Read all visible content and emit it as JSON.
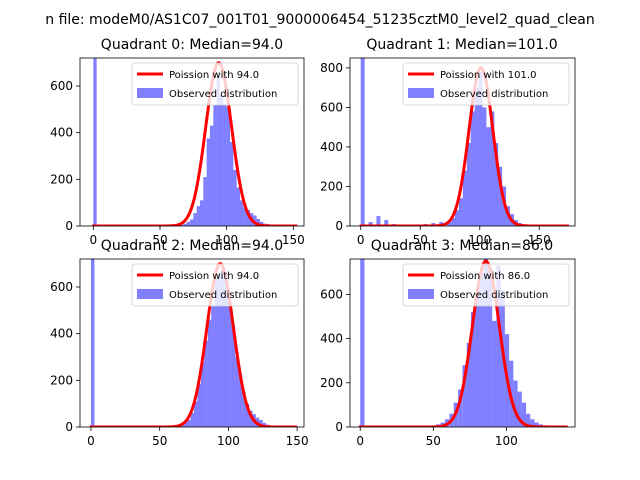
{
  "figure": {
    "suptitle": "n file: modeM0/AS1C07_001T01_9000006454_51235cztM0_level2_quad_clean"
  },
  "colors": {
    "hist": "#0000ff",
    "poisson": "#ff0000",
    "legend_border": "#cccccc"
  },
  "chart_data": [
    {
      "type": "bar",
      "title": "Quadrant 0: Median=94.0",
      "legend": [
        "Poission with 94.0",
        "Observed distribution"
      ],
      "legend_position": "upper-right",
      "xlim": [
        -10,
        158
      ],
      "ylim": [
        0,
        720
      ],
      "xticks": [
        0,
        50,
        100,
        150
      ],
      "yticks": [
        0,
        200,
        400,
        600
      ],
      "poisson_mean": 94.0,
      "poisson_peak": 700,
      "bin_width": 2.5,
      "bins": [
        [
          0,
          720
        ],
        [
          55,
          2
        ],
        [
          65,
          5
        ],
        [
          67.5,
          10
        ],
        [
          70,
          18
        ],
        [
          72.5,
          28
        ],
        [
          75,
          55
        ],
        [
          77.5,
          85
        ],
        [
          80,
          110
        ],
        [
          82.5,
          210
        ],
        [
          85,
          375
        ],
        [
          87.5,
          430
        ],
        [
          90,
          520
        ],
        [
          92.5,
          650
        ],
        [
          95,
          560
        ],
        [
          97.5,
          520
        ],
        [
          100,
          510
        ],
        [
          102.5,
          360
        ],
        [
          105,
          240
        ],
        [
          107.5,
          165
        ],
        [
          110,
          110
        ],
        [
          112.5,
          80
        ],
        [
          115,
          70
        ],
        [
          117.5,
          55
        ],
        [
          120,
          45
        ],
        [
          122.5,
          30
        ],
        [
          125,
          18
        ],
        [
          127.5,
          10
        ],
        [
          130,
          8
        ],
        [
          132.5,
          4
        ],
        [
          135,
          2
        ]
      ]
    },
    {
      "type": "bar",
      "title": "Quadrant 1: Median=101.0",
      "legend": [
        "Poission with 101.0",
        "Observed distribution"
      ],
      "legend_position": "upper-right",
      "xlim": [
        -9,
        180
      ],
      "ylim": [
        0,
        850
      ],
      "xticks": [
        0,
        50,
        100,
        150
      ],
      "yticks": [
        0,
        200,
        400,
        600,
        800
      ],
      "poisson_mean": 101.0,
      "poisson_peak": 800,
      "bin_width": 3.3,
      "bins": [
        [
          0,
          850
        ],
        [
          6.6,
          20
        ],
        [
          13.2,
          50
        ],
        [
          19.8,
          30
        ],
        [
          26.4,
          10
        ],
        [
          33,
          5
        ],
        [
          39.6,
          5
        ],
        [
          46.2,
          8
        ],
        [
          52.8,
          10
        ],
        [
          59.4,
          15
        ],
        [
          66,
          20
        ],
        [
          72.6,
          25
        ],
        [
          76,
          40
        ],
        [
          79.2,
          80
        ],
        [
          82.5,
          140
        ],
        [
          85.8,
          280
        ],
        [
          89.1,
          420
        ],
        [
          92.4,
          580
        ],
        [
          95.7,
          700
        ],
        [
          99,
          780
        ],
        [
          102.3,
          600
        ],
        [
          105.6,
          500
        ],
        [
          108.9,
          580
        ],
        [
          112.2,
          420
        ],
        [
          115.5,
          300
        ],
        [
          118.8,
          200
        ],
        [
          122.1,
          100
        ],
        [
          125.4,
          60
        ],
        [
          128.7,
          30
        ],
        [
          132,
          15
        ],
        [
          135.3,
          10
        ],
        [
          138.6,
          8
        ],
        [
          141.9,
          5
        ],
        [
          148.5,
          3
        ],
        [
          158,
          2
        ]
      ]
    },
    {
      "type": "bar",
      "title": "Quadrant 2: Median=94.0",
      "legend": [
        "Poission with 94.0",
        "Observed distribution"
      ],
      "legend_position": "upper-right",
      "xlim": [
        -8,
        155
      ],
      "ylim": [
        0,
        720
      ],
      "xticks": [
        0,
        50,
        100,
        150
      ],
      "yticks": [
        0,
        200,
        400,
        600
      ],
      "poisson_mean": 94.0,
      "poisson_peak": 700,
      "bin_width": 2.5,
      "bins": [
        [
          0,
          720
        ],
        [
          57.5,
          2
        ],
        [
          62.5,
          5
        ],
        [
          65,
          10
        ],
        [
          67.5,
          20
        ],
        [
          70,
          30
        ],
        [
          72.5,
          60
        ],
        [
          75,
          110
        ],
        [
          77.5,
          185
        ],
        [
          80,
          280
        ],
        [
          82.5,
          370
        ],
        [
          85,
          460
        ],
        [
          87.5,
          520
        ],
        [
          90,
          640
        ],
        [
          92.5,
          660
        ],
        [
          95,
          690
        ],
        [
          97.5,
          660
        ],
        [
          100,
          540
        ],
        [
          102.5,
          430
        ],
        [
          105,
          300
        ],
        [
          107.5,
          230
        ],
        [
          110,
          150
        ],
        [
          112.5,
          100
        ],
        [
          115,
          70
        ],
        [
          117.5,
          55
        ],
        [
          120,
          40
        ],
        [
          122.5,
          30
        ],
        [
          125,
          18
        ],
        [
          127.5,
          10
        ],
        [
          130,
          6
        ],
        [
          132.5,
          4
        ],
        [
          135,
          2
        ]
      ]
    },
    {
      "type": "bar",
      "title": "Quadrant 3: Median=86.0",
      "legend": [
        "Poission with 86.0",
        "Observed distribution"
      ],
      "legend_position": "upper-right",
      "xlim": [
        -7,
        147
      ],
      "ylim": [
        0,
        760
      ],
      "xticks": [
        0,
        50,
        100
      ],
      "yticks": [
        0,
        200,
        400,
        600
      ],
      "poisson_mean": 86.0,
      "poisson_peak": 750,
      "bin_width": 2.9,
      "bins": [
        [
          0,
          760
        ],
        [
          49,
          5
        ],
        [
          52,
          12
        ],
        [
          55,
          20
        ],
        [
          58,
          35
        ],
        [
          61,
          60
        ],
        [
          64,
          110
        ],
        [
          67,
          170
        ],
        [
          70,
          280
        ],
        [
          72.9,
          380
        ],
        [
          75.8,
          520
        ],
        [
          78.7,
          600
        ],
        [
          81.6,
          700
        ],
        [
          84.5,
          760
        ],
        [
          87.4,
          720
        ],
        [
          90.3,
          480
        ],
        [
          93.2,
          730
        ],
        [
          96.1,
          620
        ],
        [
          99,
          420
        ],
        [
          101.9,
          300
        ],
        [
          104.8,
          210
        ],
        [
          107.7,
          160
        ],
        [
          110.6,
          110
        ],
        [
          113.5,
          60
        ],
        [
          116.4,
          35
        ],
        [
          119.3,
          20
        ],
        [
          122.2,
          12
        ],
        [
          125.1,
          8
        ],
        [
          128,
          5
        ],
        [
          131,
          3
        ],
        [
          134,
          2
        ],
        [
          140,
          1
        ]
      ]
    }
  ]
}
